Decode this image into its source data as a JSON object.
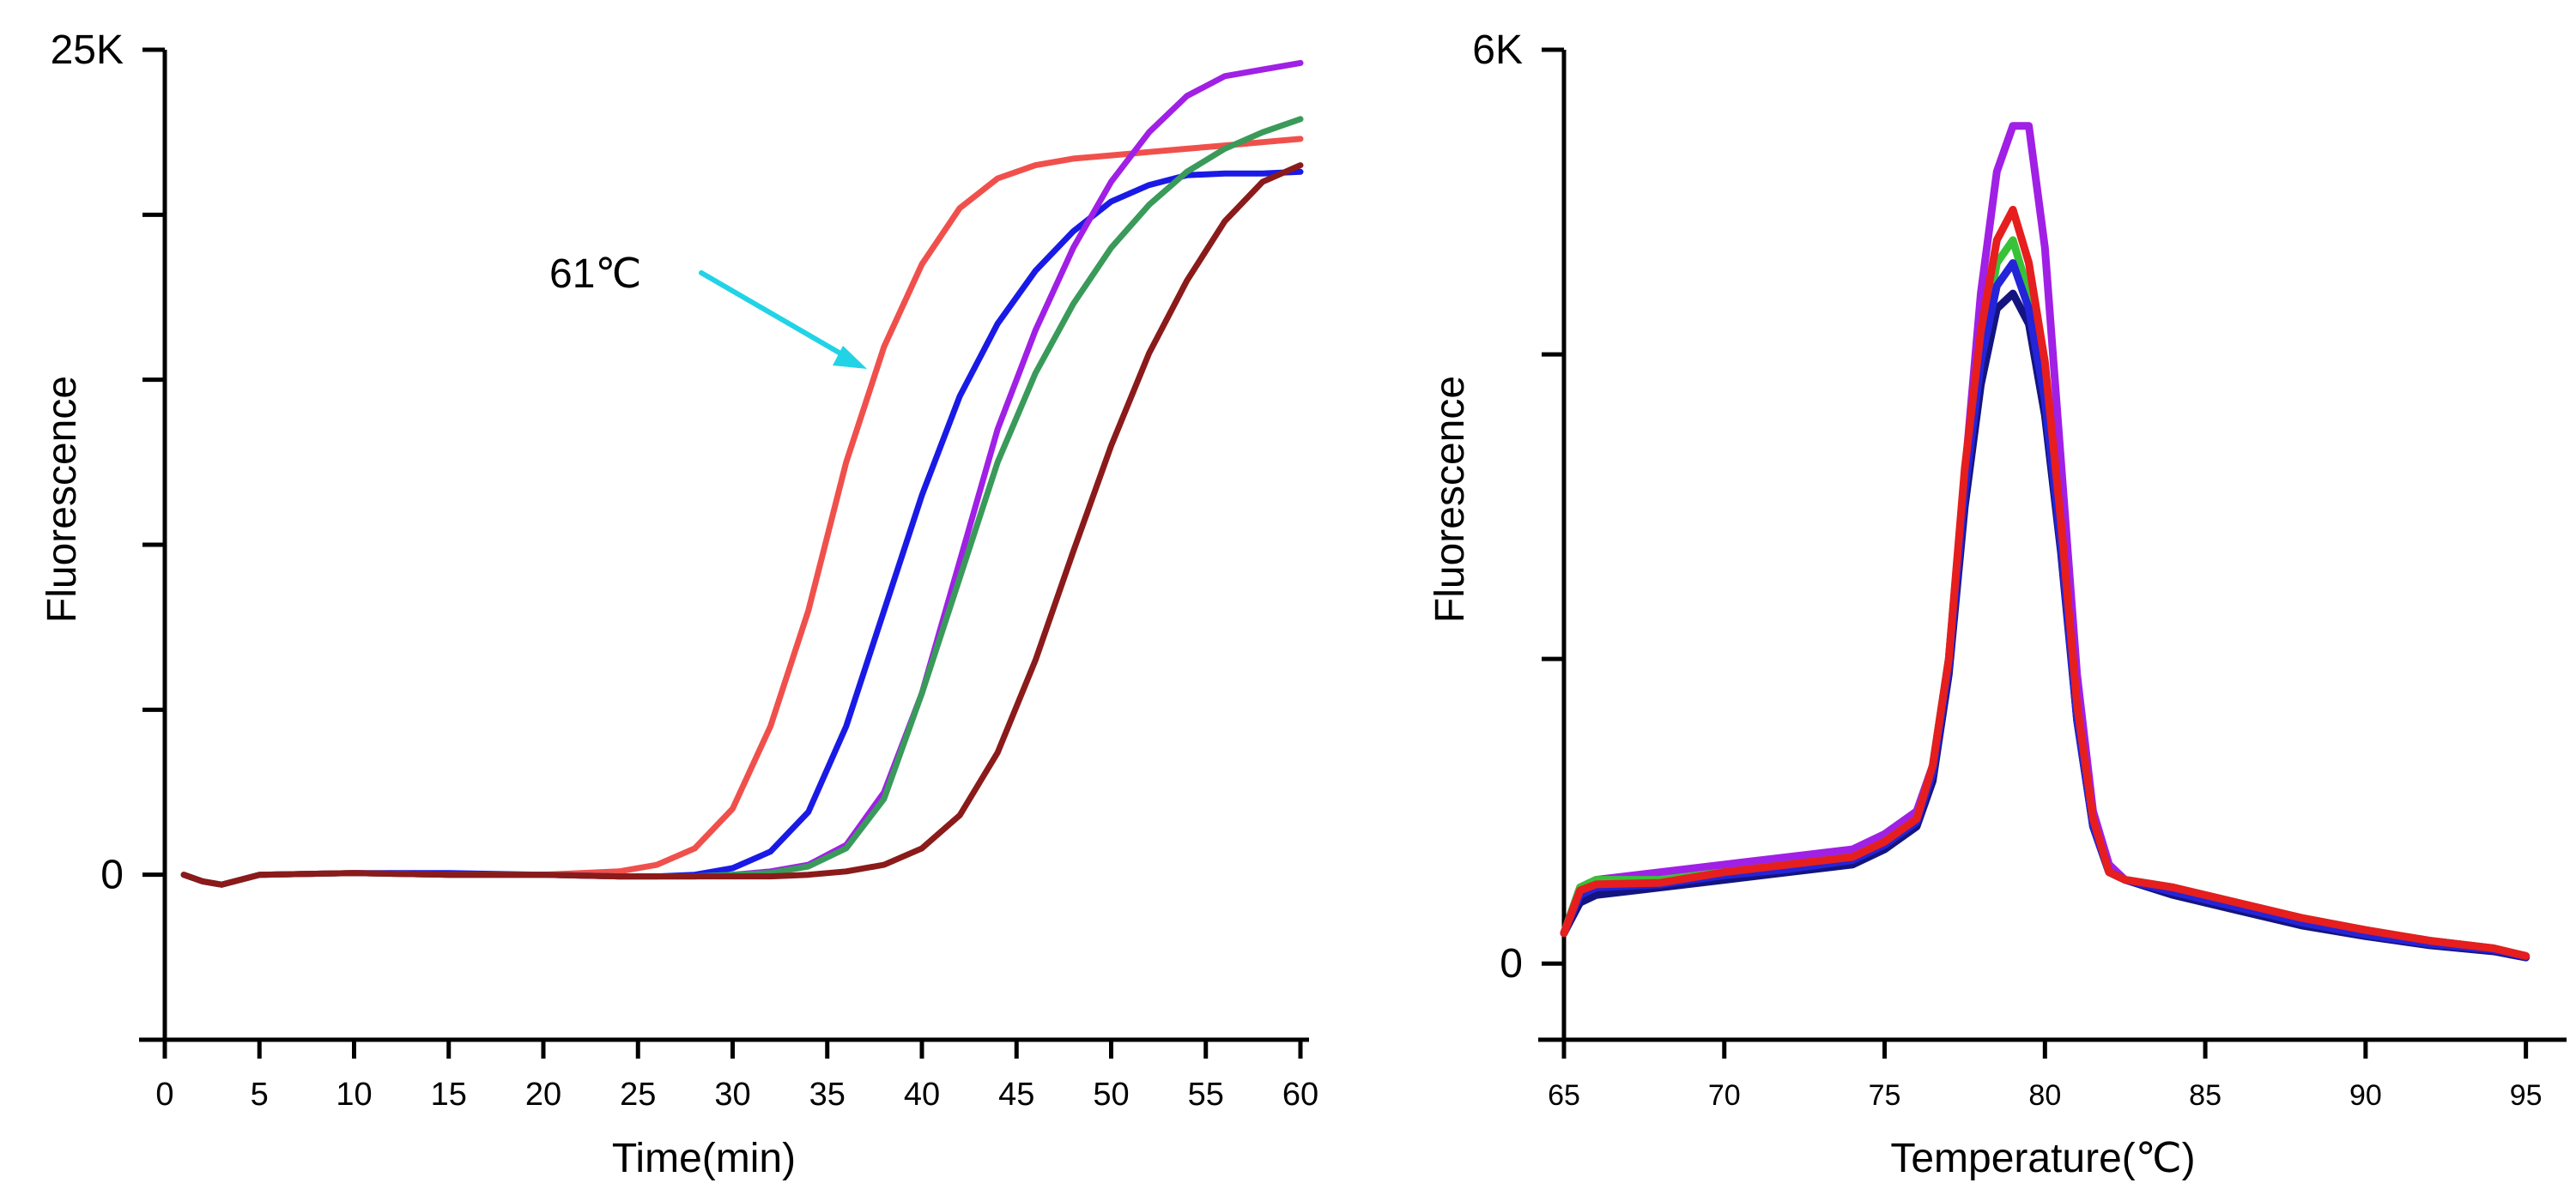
{
  "chart_data": [
    {
      "type": "line",
      "xlabel": "Time(min)",
      "ylabel": "Fluorescence",
      "xlim": [
        0,
        60
      ],
      "ylim": [
        -5000,
        25000
      ],
      "xticks": [
        0,
        5,
        10,
        15,
        20,
        25,
        30,
        35,
        40,
        45,
        50,
        55,
        60
      ],
      "yticks": [
        0,
        5000,
        10000,
        15000,
        20000,
        25000
      ],
      "ytick_labels": {
        "0": "0",
        "25000": "25K"
      },
      "annotation": {
        "text": "61℃",
        "color": "#22d3e6",
        "points_at_series": 0
      },
      "series": [
        {
          "name": "61℃",
          "color": "#f0504c",
          "x": [
            1,
            2,
            3,
            5,
            10,
            15,
            20,
            22,
            24,
            26,
            28,
            30,
            32,
            34,
            36,
            38,
            40,
            42,
            44,
            46,
            48,
            50,
            52,
            54,
            56,
            58,
            60
          ],
          "y": [
            0,
            -200,
            -300,
            0,
            50,
            0,
            0,
            50,
            100,
            300,
            800,
            2000,
            4500,
            8000,
            12500,
            16000,
            18500,
            20200,
            21100,
            21500,
            21700,
            21800,
            21900,
            22000,
            22100,
            22200,
            22300
          ]
        },
        {
          "name": "series-blue",
          "color": "#1a1ae6",
          "x": [
            1,
            2,
            3,
            5,
            10,
            15,
            20,
            24,
            26,
            28,
            30,
            32,
            34,
            36,
            38,
            40,
            42,
            44,
            46,
            48,
            50,
            52,
            54,
            56,
            58,
            60
          ],
          "y": [
            0,
            -200,
            -300,
            0,
            50,
            50,
            0,
            -50,
            -50,
            0,
            200,
            700,
            1900,
            4500,
            8000,
            11500,
            14500,
            16700,
            18300,
            19500,
            20400,
            20900,
            21200,
            21250,
            21250,
            21300
          ]
        },
        {
          "name": "series-purple",
          "color": "#a020e6",
          "x": [
            1,
            2,
            3,
            5,
            10,
            15,
            20,
            24,
            26,
            28,
            30,
            32,
            34,
            36,
            38,
            40,
            42,
            44,
            46,
            48,
            50,
            52,
            54,
            56,
            58,
            60
          ],
          "y": [
            0,
            -200,
            -300,
            0,
            50,
            0,
            0,
            -50,
            -50,
            -50,
            0,
            100,
            300,
            900,
            2500,
            5500,
            9500,
            13500,
            16500,
            19000,
            21000,
            22500,
            23600,
            24200,
            24400,
            24600
          ]
        },
        {
          "name": "series-green",
          "color": "#3a9a5a",
          "x": [
            1,
            2,
            3,
            5,
            10,
            15,
            20,
            24,
            26,
            28,
            30,
            32,
            34,
            36,
            38,
            40,
            42,
            44,
            46,
            48,
            50,
            52,
            54,
            56,
            58,
            60
          ],
          "y": [
            0,
            -200,
            -300,
            0,
            50,
            0,
            0,
            -50,
            -50,
            -50,
            0,
            50,
            250,
            800,
            2300,
            5500,
            9000,
            12500,
            15200,
            17300,
            19000,
            20300,
            21300,
            22000,
            22500,
            22900
          ]
        },
        {
          "name": "series-darkred",
          "color": "#8b1a1a",
          "x": [
            1,
            2,
            3,
            5,
            10,
            15,
            20,
            24,
            26,
            28,
            30,
            32,
            34,
            36,
            38,
            40,
            42,
            44,
            46,
            48,
            50,
            52,
            54,
            56,
            58,
            60
          ],
          "y": [
            0,
            -200,
            -300,
            0,
            50,
            0,
            0,
            -50,
            -50,
            -50,
            -50,
            -50,
            0,
            100,
            300,
            800,
            1800,
            3700,
            6500,
            9800,
            13000,
            15800,
            18000,
            19800,
            21000,
            21500
          ]
        }
      ]
    },
    {
      "type": "line",
      "xlabel": "Temperature(℃)",
      "ylabel": "Fluorescence",
      "xlim": [
        65,
        96
      ],
      "ylim": [
        -500,
        6000
      ],
      "xticks": [
        65,
        70,
        75,
        80,
        85,
        90,
        95
      ],
      "yticks": [
        0,
        2000,
        4000,
        6000
      ],
      "ytick_labels": {
        "0": "0",
        "6000": "6K"
      },
      "series": [
        {
          "name": "melt-purple",
          "color": "#a020e6",
          "x": [
            65,
            65.5,
            66,
            68,
            70,
            72,
            74,
            75,
            76,
            76.5,
            77,
            77.5,
            78,
            78.5,
            79,
            79.5,
            80,
            80.5,
            81,
            81.5,
            82,
            82.5,
            84,
            86,
            88,
            90,
            92,
            94,
            95
          ],
          "y": [
            200,
            500,
            550,
            600,
            650,
            700,
            750,
            850,
            1000,
            1300,
            2000,
            3200,
            4400,
            5200,
            5500,
            5500,
            4700,
            3300,
            1900,
            1000,
            650,
            550,
            500,
            400,
            300,
            220,
            150,
            100,
            50
          ]
        },
        {
          "name": "melt-green",
          "color": "#38c238",
          "x": [
            65,
            65.5,
            66,
            68,
            70,
            72,
            74,
            75,
            76,
            76.5,
            77,
            77.5,
            78,
            78.5,
            79,
            79.5,
            80,
            80.5,
            81,
            81.5,
            82,
            82.5,
            84,
            86,
            88,
            90,
            92,
            94,
            95
          ],
          "y": [
            200,
            500,
            550,
            550,
            600,
            650,
            700,
            800,
            950,
            1300,
            2000,
            3200,
            4000,
            4600,
            4750,
            4400,
            3800,
            2800,
            1600,
            900,
            600,
            550,
            500,
            400,
            300,
            220,
            150,
            100,
            50
          ]
        },
        {
          "name": "melt-darkblue",
          "color": "#141480",
          "x": [
            65,
            65.5,
            66,
            68,
            70,
            72,
            74,
            75,
            76,
            76.5,
            77,
            77.5,
            78,
            78.5,
            79,
            79.5,
            80,
            80.5,
            81,
            81.5,
            82,
            82.5,
            84,
            86,
            88,
            90,
            92,
            94,
            95
          ],
          "y": [
            200,
            400,
            450,
            500,
            550,
            600,
            650,
            750,
            900,
            1200,
            1900,
            3000,
            3800,
            4300,
            4400,
            4200,
            3600,
            2700,
            1600,
            900,
            600,
            550,
            450,
            350,
            250,
            180,
            120,
            80,
            40
          ]
        },
        {
          "name": "melt-blue",
          "color": "#2424d8",
          "x": [
            65,
            65.5,
            66,
            68,
            70,
            72,
            74,
            75,
            76,
            76.5,
            77,
            77.5,
            78,
            78.5,
            79,
            79.5,
            80,
            80.5,
            81,
            81.5,
            82,
            82.5,
            84,
            86,
            88,
            90,
            92,
            94,
            95
          ],
          "y": [
            200,
            450,
            500,
            520,
            580,
            620,
            680,
            780,
            930,
            1250,
            1950,
            3100,
            3950,
            4450,
            4600,
            4300,
            3700,
            2750,
            1600,
            900,
            600,
            550,
            470,
            370,
            270,
            190,
            130,
            90,
            45
          ]
        },
        {
          "name": "melt-red",
          "color": "#e61e1e",
          "x": [
            65,
            65.5,
            66,
            68,
            70,
            72,
            74,
            75,
            76,
            76.5,
            77,
            77.5,
            78,
            78.5,
            79,
            79.5,
            80,
            80.5,
            81,
            81.5,
            82,
            82.5,
            84,
            86,
            88,
            90,
            92,
            94,
            95
          ],
          "y": [
            200,
            480,
            520,
            530,
            600,
            650,
            700,
            800,
            950,
            1300,
            2000,
            3250,
            4150,
            4750,
            4950,
            4600,
            3950,
            2900,
            1700,
            950,
            600,
            550,
            500,
            400,
            300,
            220,
            150,
            100,
            50
          ]
        }
      ]
    }
  ]
}
